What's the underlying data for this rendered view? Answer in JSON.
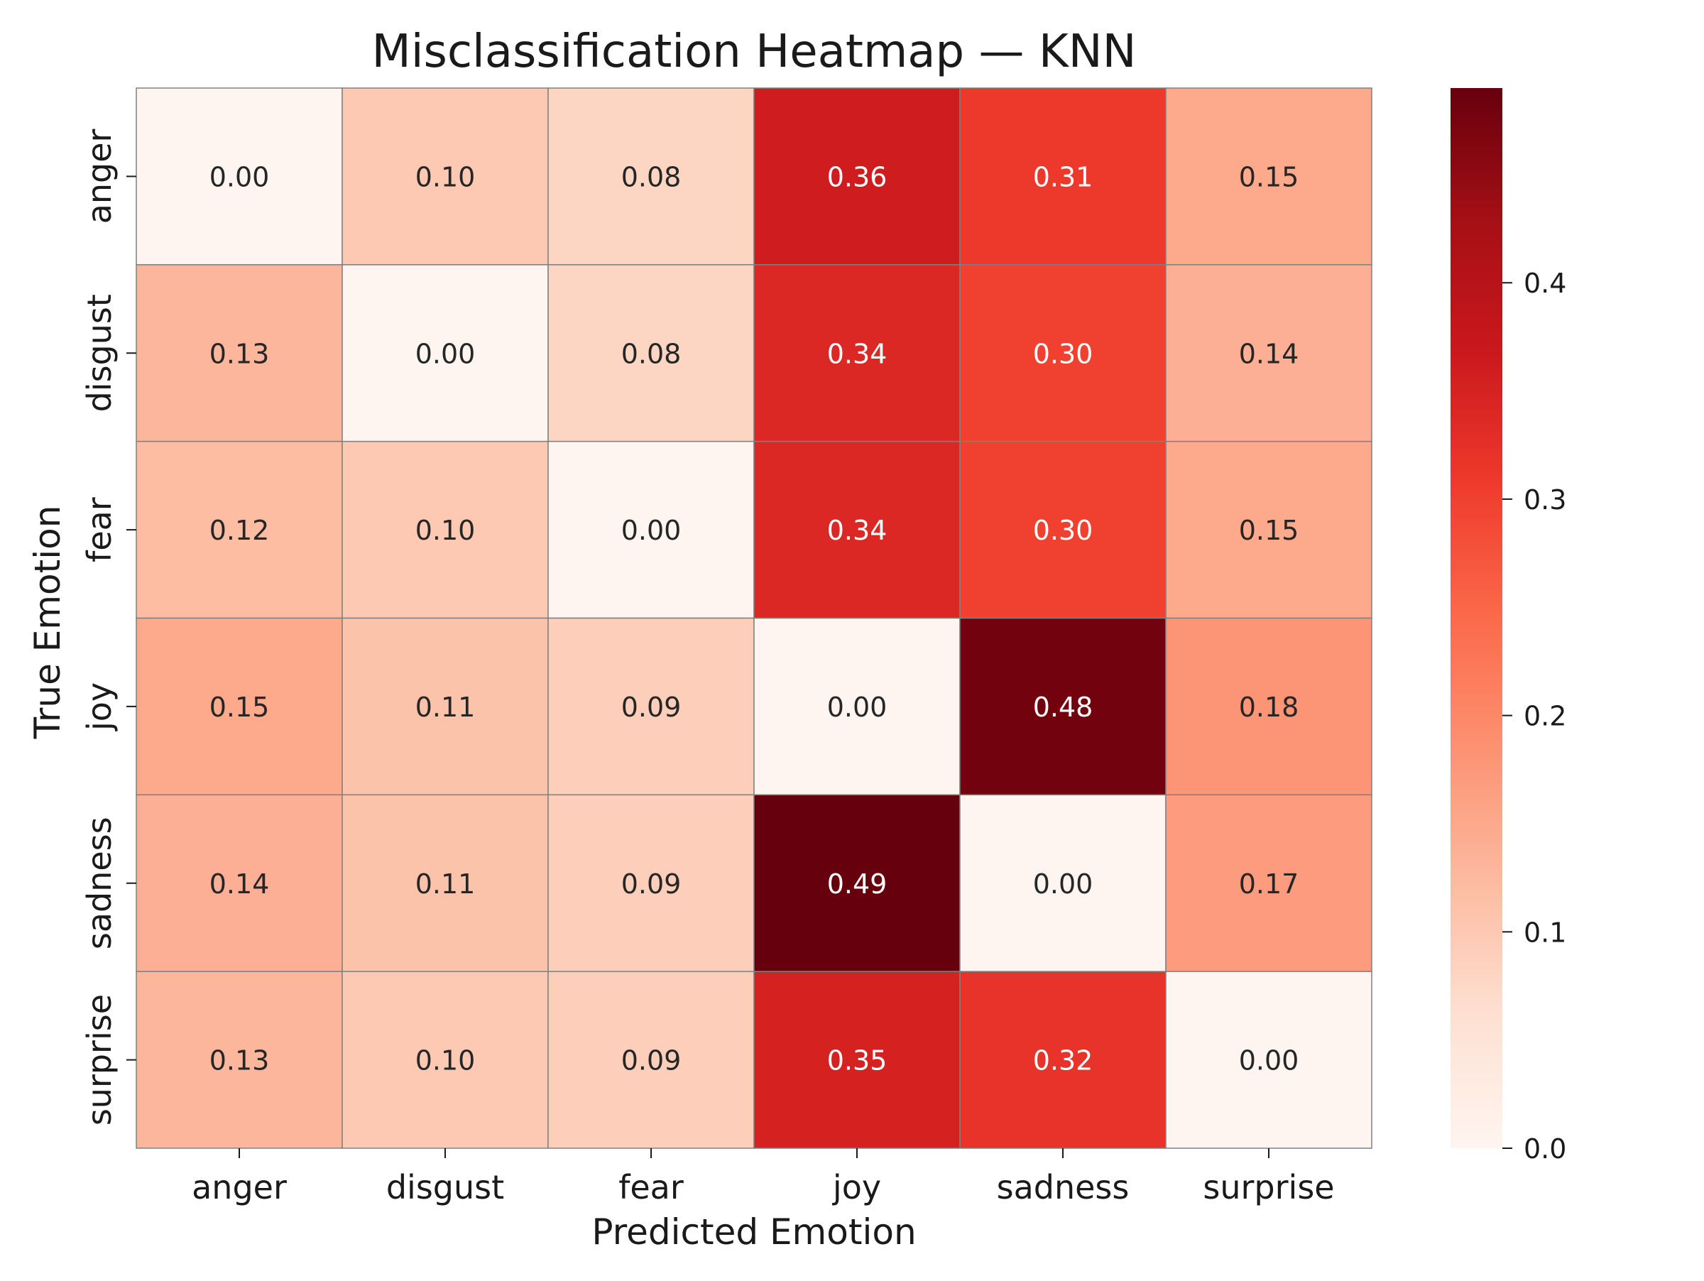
{
  "chart_data": {
    "type": "heatmap",
    "title": "Misclassification Heatmap — KNN",
    "xlabel": "Predicted Emotion",
    "ylabel": "True Emotion",
    "x_categories": [
      "anger",
      "disgust",
      "fear",
      "joy",
      "sadness",
      "surprise"
    ],
    "y_categories": [
      "anger",
      "disgust",
      "fear",
      "joy",
      "sadness",
      "surprise"
    ],
    "values": [
      [
        0.0,
        0.1,
        0.08,
        0.36,
        0.31,
        0.15
      ],
      [
        0.13,
        0.0,
        0.08,
        0.34,
        0.3,
        0.14
      ],
      [
        0.12,
        0.1,
        0.0,
        0.34,
        0.3,
        0.15
      ],
      [
        0.15,
        0.11,
        0.09,
        0.0,
        0.48,
        0.18
      ],
      [
        0.14,
        0.11,
        0.09,
        0.49,
        0.0,
        0.17
      ],
      [
        0.13,
        0.1,
        0.09,
        0.35,
        0.32,
        0.0
      ]
    ],
    "value_format": "0.00",
    "colormap": "Reds",
    "color_range": [
      0.0,
      0.49
    ],
    "colorbar": {
      "ticks": [
        0.0,
        0.1,
        0.2,
        0.3,
        0.4
      ],
      "tick_labels": [
        "0.0",
        "0.1",
        "0.2",
        "0.3",
        "0.4"
      ]
    },
    "cell_border_color": "#808080",
    "grid": false
  }
}
